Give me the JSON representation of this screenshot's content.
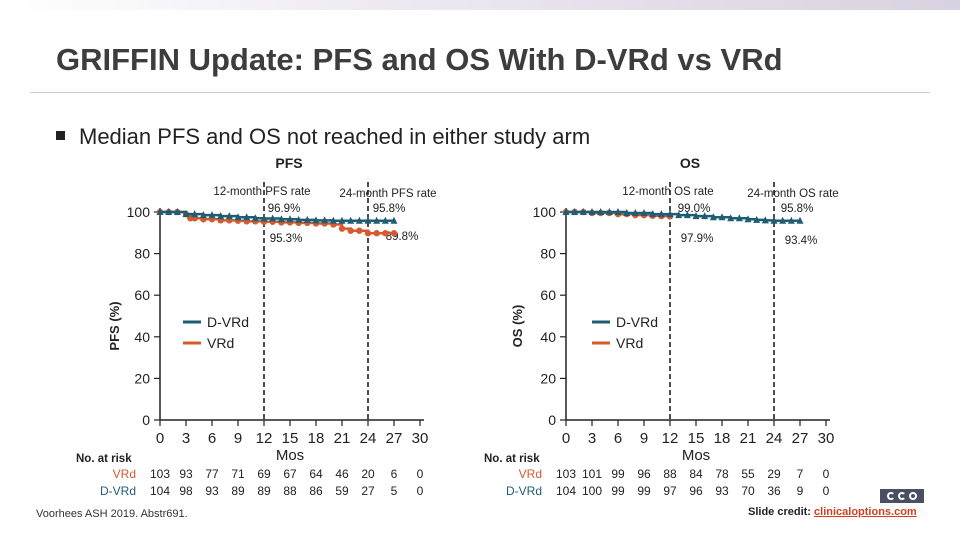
{
  "slide": {
    "title": "GRIFFIN Update: PFS and OS With D-VRd vs VRd",
    "bullet": "Median PFS and OS not reached in either study arm",
    "footnote": "Voorhees ASH 2019. Abstr691.",
    "credit_prefix": "Slide credit: ",
    "credit_link": "clinicaloptions.com"
  },
  "colors": {
    "dvrd": "#1f5d74",
    "vrd": "#d65a2e",
    "axis": "#222222"
  },
  "chart_data": [
    {
      "type": "line",
      "id": "pfs",
      "title": "PFS",
      "xlabel": "Mos",
      "ylabel": "PFS (%)",
      "xlim": [
        0,
        30
      ],
      "ylim": [
        0,
        100
      ],
      "xticks": [
        "0",
        "3",
        "6",
        "9",
        "12",
        "15",
        "18",
        "21",
        "24",
        "27",
        "30"
      ],
      "yticks": [
        "0",
        "20",
        "40",
        "60",
        "80",
        "100"
      ],
      "legend": [
        "D-VRd",
        "VRd"
      ],
      "milestones": [
        {
          "x": 12,
          "label": "12-month PFS rate",
          "top": "96.9%",
          "bottom": "95.3%"
        },
        {
          "x": 24,
          "label": "24-month PFS rate",
          "top": "95.8%",
          "bottom": "89.8%"
        }
      ],
      "series": [
        {
          "name": "D-VRd",
          "x": [
            0,
            1,
            2,
            3,
            4,
            5,
            6,
            7,
            8,
            9,
            10,
            11,
            12,
            13,
            14,
            15,
            16,
            17,
            18,
            19,
            20,
            21,
            22,
            23,
            24,
            25,
            26,
            27
          ],
          "y": [
            100,
            100,
            100,
            99,
            99,
            98.5,
            98.5,
            98,
            98,
            97.5,
            97.5,
            97,
            96.9,
            96.9,
            96.5,
            96.5,
            96.2,
            96.2,
            96,
            96,
            95.8,
            95.8,
            95.8,
            95.8,
            95.8,
            95.8,
            95.8,
            95.8
          ]
        },
        {
          "name": "VRd",
          "x": [
            0,
            1,
            2,
            3,
            3.5,
            4,
            5,
            6,
            7,
            8,
            9,
            10,
            11,
            12,
            13,
            14,
            15,
            16,
            17,
            18,
            19,
            20,
            21,
            22,
            23,
            24,
            25,
            26,
            27
          ],
          "y": [
            100,
            100,
            100,
            99,
            97,
            97,
            96.5,
            96.5,
            96,
            96,
            95.8,
            95.5,
            95.5,
            95.3,
            95.3,
            95,
            95,
            94.8,
            94.8,
            94.5,
            94.5,
            94,
            92,
            91,
            91,
            89.8,
            89.8,
            89.8,
            89.8
          ]
        }
      ],
      "at_risk": {
        "label": "No. at risk",
        "rows": [
          {
            "name": "VRd",
            "values": [
              "103",
              "93",
              "77",
              "71",
              "69",
              "67",
              "64",
              "46",
              "20",
              "6",
              "0"
            ]
          },
          {
            "name": "D-VRd",
            "values": [
              "104",
              "98",
              "93",
              "89",
              "89",
              "88",
              "86",
              "59",
              "27",
              "5",
              "0"
            ]
          }
        ]
      }
    },
    {
      "type": "line",
      "id": "os",
      "title": "OS",
      "xlabel": "Mos",
      "ylabel": "OS (%)",
      "xlim": [
        0,
        30
      ],
      "ylim": [
        0,
        100
      ],
      "xticks": [
        "0",
        "3",
        "6",
        "9",
        "12",
        "15",
        "18",
        "21",
        "24",
        "27",
        "30"
      ],
      "yticks": [
        "0",
        "20",
        "40",
        "60",
        "80",
        "100"
      ],
      "legend": [
        "D-VRd",
        "VRd"
      ],
      "milestones": [
        {
          "x": 12,
          "label": "12-month OS rate",
          "top": "99.0%",
          "bottom": "97.9%"
        },
        {
          "x": 24,
          "label": "24-month OS rate",
          "top": "95.8%",
          "bottom": "93.4%"
        }
      ],
      "series": [
        {
          "name": "D-VRd",
          "x": [
            0,
            1,
            2,
            3,
            4,
            5,
            6,
            7,
            8,
            9,
            10,
            11,
            12,
            13,
            14,
            15,
            16,
            17,
            18,
            19,
            20,
            21,
            22,
            23,
            24,
            25,
            26,
            27
          ],
          "y": [
            100,
            100,
            100,
            100,
            100,
            100,
            100,
            99.5,
            99.5,
            99.5,
            99,
            99,
            99,
            98.5,
            98.5,
            98,
            98,
            97.5,
            97.5,
            97,
            97,
            96.5,
            96.2,
            96,
            95.8,
            95.8,
            95.8,
            95.8
          ]
        },
        {
          "name": "VRd",
          "x": [
            0,
            1,
            2,
            3,
            4,
            5,
            6,
            7,
            8,
            9,
            10,
            11,
            12
          ],
          "y": [
            100,
            100,
            100,
            99.5,
            99.5,
            99.5,
            99,
            99,
            98.5,
            98.5,
            98.2,
            98,
            97.9
          ]
        }
      ],
      "at_risk": {
        "label": "No. at risk",
        "rows": [
          {
            "name": "VRd",
            "values": [
              "103",
              "101",
              "99",
              "96",
              "88",
              "84",
              "78",
              "55",
              "29",
              "7",
              "0"
            ]
          },
          {
            "name": "D-VRd",
            "values": [
              "104",
              "100",
              "99",
              "99",
              "97",
              "96",
              "93",
              "70",
              "36",
              "9",
              "0"
            ]
          }
        ]
      }
    }
  ]
}
